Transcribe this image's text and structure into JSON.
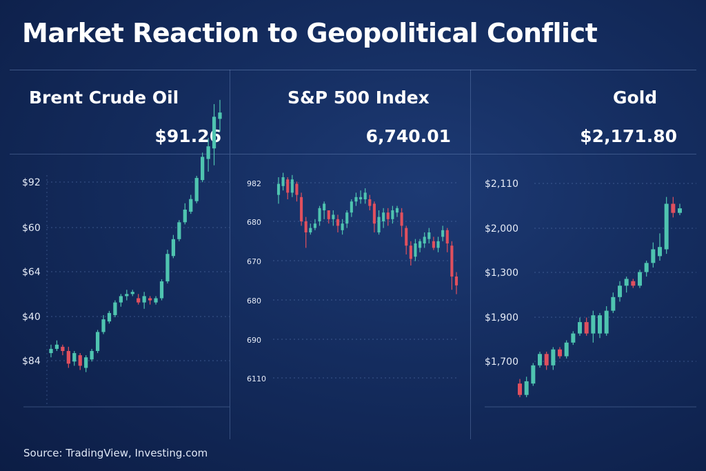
{
  "title": "Market Reaction to Geopolitical Conflict",
  "source": "Source: TradingView, Investing.com",
  "colors": {
    "up": "#4fc4b0",
    "down": "#e0505e",
    "grid": "#5c7bb3",
    "tick": "#e6ecf7"
  },
  "chart_data": [
    {
      "type": "candlestick",
      "title": "Brent Crude Oil",
      "price": "$91.26",
      "ticks": [
        "$92",
        "$60",
        "$64",
        "$40",
        "$84"
      ],
      "ohlc": [
        [
          0.16,
          0.18,
          0.2,
          0.14
        ],
        [
          0.18,
          0.2,
          0.22,
          0.17
        ],
        [
          0.19,
          0.17,
          0.2,
          0.15
        ],
        [
          0.17,
          0.11,
          0.19,
          0.09
        ],
        [
          0.12,
          0.16,
          0.17,
          0.1
        ],
        [
          0.15,
          0.1,
          0.16,
          0.08
        ],
        [
          0.09,
          0.14,
          0.15,
          0.07
        ],
        [
          0.13,
          0.17,
          0.18,
          0.12
        ],
        [
          0.17,
          0.26,
          0.27,
          0.16
        ],
        [
          0.26,
          0.32,
          0.34,
          0.25
        ],
        [
          0.31,
          0.35,
          0.36,
          0.3
        ],
        [
          0.34,
          0.4,
          0.41,
          0.33
        ],
        [
          0.4,
          0.43,
          0.44,
          0.38
        ],
        [
          0.43,
          0.44,
          0.46,
          0.41
        ],
        [
          0.44,
          0.45,
          0.46,
          0.43
        ],
        [
          0.42,
          0.4,
          0.44,
          0.39
        ],
        [
          0.4,
          0.43,
          0.45,
          0.37
        ],
        [
          0.42,
          0.41,
          0.43,
          0.39
        ],
        [
          0.4,
          0.42,
          0.43,
          0.39
        ],
        [
          0.42,
          0.5,
          0.51,
          0.41
        ],
        [
          0.5,
          0.63,
          0.65,
          0.49
        ],
        [
          0.62,
          0.7,
          0.72,
          0.61
        ],
        [
          0.7,
          0.78,
          0.79,
          0.69
        ],
        [
          0.78,
          0.84,
          0.87,
          0.77
        ],
        [
          0.83,
          0.89,
          0.91,
          0.82
        ],
        [
          0.88,
          0.99,
          1.0,
          0.87
        ],
        [
          0.98,
          1.09,
          1.11,
          0.97
        ],
        [
          1.08,
          1.14,
          1.18,
          1.02
        ],
        [
          1.13,
          1.28,
          1.34,
          1.05
        ],
        [
          1.27,
          1.3,
          1.36,
          1.21
        ]
      ]
    },
    {
      "type": "candlestick",
      "title": "S&P 500 Index",
      "price": "6,740.01",
      "ticks": [
        "982",
        "680",
        "670",
        "680",
        "690",
        "6110"
      ],
      "ohlc": [
        [
          0.87,
          0.92,
          0.95,
          0.83
        ],
        [
          0.91,
          0.95,
          0.97,
          0.89
        ],
        [
          0.94,
          0.88,
          0.95,
          0.85
        ],
        [
          0.88,
          0.94,
          0.96,
          0.86
        ],
        [
          0.92,
          0.87,
          0.93,
          0.84
        ],
        [
          0.86,
          0.75,
          0.88,
          0.73
        ],
        [
          0.75,
          0.7,
          0.77,
          0.63
        ],
        [
          0.7,
          0.72,
          0.74,
          0.69
        ],
        [
          0.72,
          0.74,
          0.76,
          0.71
        ],
        [
          0.75,
          0.81,
          0.82,
          0.73
        ],
        [
          0.8,
          0.83,
          0.84,
          0.76
        ],
        [
          0.8,
          0.76,
          0.8,
          0.74
        ],
        [
          0.76,
          0.78,
          0.8,
          0.73
        ],
        [
          0.76,
          0.73,
          0.78,
          0.7
        ],
        [
          0.71,
          0.74,
          0.76,
          0.69
        ],
        [
          0.74,
          0.79,
          0.8,
          0.72
        ],
        [
          0.79,
          0.84,
          0.85,
          0.77
        ],
        [
          0.84,
          0.86,
          0.88,
          0.82
        ],
        [
          0.85,
          0.86,
          0.89,
          0.83
        ],
        [
          0.85,
          0.88,
          0.9,
          0.83
        ],
        [
          0.85,
          0.82,
          0.87,
          0.8
        ],
        [
          0.83,
          0.74,
          0.84,
          0.7
        ],
        [
          0.7,
          0.77,
          0.8,
          0.69
        ],
        [
          0.75,
          0.79,
          0.81,
          0.72
        ],
        [
          0.79,
          0.76,
          0.81,
          0.73
        ],
        [
          0.76,
          0.8,
          0.82,
          0.74
        ],
        [
          0.79,
          0.81,
          0.82,
          0.77
        ],
        [
          0.79,
          0.73,
          0.81,
          0.68
        ],
        [
          0.72,
          0.64,
          0.73,
          0.6
        ],
        [
          0.64,
          0.58,
          0.66,
          0.55
        ],
        [
          0.59,
          0.65,
          0.67,
          0.57
        ],
        [
          0.63,
          0.66,
          0.67,
          0.61
        ],
        [
          0.65,
          0.68,
          0.7,
          0.63
        ],
        [
          0.67,
          0.7,
          0.72,
          0.65
        ],
        [
          0.66,
          0.63,
          0.68,
          0.62
        ],
        [
          0.63,
          0.66,
          0.68,
          0.61
        ],
        [
          0.68,
          0.71,
          0.73,
          0.66
        ],
        [
          0.71,
          0.65,
          0.72,
          0.61
        ],
        [
          0.64,
          0.5,
          0.66,
          0.44
        ],
        [
          0.5,
          0.46,
          0.52,
          0.42
        ]
      ]
    },
    {
      "type": "candlestick",
      "title": "Gold",
      "price": "$2,171.80",
      "ticks": [
        "$2,110",
        "$2,000",
        "$1,300",
        "$1,900",
        "$1,700"
      ],
      "ohlc": [
        [
          0.06,
          0.01,
          0.08,
          0.0
        ],
        [
          0.01,
          0.07,
          0.09,
          0.0
        ],
        [
          0.06,
          0.14,
          0.15,
          0.05
        ],
        [
          0.14,
          0.19,
          0.2,
          0.13
        ],
        [
          0.19,
          0.14,
          0.2,
          0.12
        ],
        [
          0.14,
          0.21,
          0.22,
          0.12
        ],
        [
          0.21,
          0.18,
          0.22,
          0.17
        ],
        [
          0.18,
          0.24,
          0.25,
          0.17
        ],
        [
          0.24,
          0.28,
          0.29,
          0.23
        ],
        [
          0.28,
          0.33,
          0.35,
          0.27
        ],
        [
          0.33,
          0.28,
          0.35,
          0.27
        ],
        [
          0.28,
          0.36,
          0.38,
          0.24
        ],
        [
          0.28,
          0.36,
          0.37,
          0.26
        ],
        [
          0.28,
          0.38,
          0.4,
          0.27
        ],
        [
          0.38,
          0.44,
          0.46,
          0.37
        ],
        [
          0.44,
          0.49,
          0.51,
          0.42
        ],
        [
          0.49,
          0.52,
          0.53,
          0.46
        ],
        [
          0.51,
          0.49,
          0.52,
          0.48
        ],
        [
          0.49,
          0.55,
          0.56,
          0.48
        ],
        [
          0.55,
          0.59,
          0.6,
          0.53
        ],
        [
          0.59,
          0.65,
          0.68,
          0.57
        ],
        [
          0.62,
          0.66,
          0.72,
          0.6
        ],
        [
          0.65,
          0.85,
          0.88,
          0.63
        ],
        [
          0.85,
          0.81,
          0.88,
          0.79
        ],
        [
          0.81,
          0.83,
          0.85,
          0.8
        ]
      ]
    }
  ]
}
